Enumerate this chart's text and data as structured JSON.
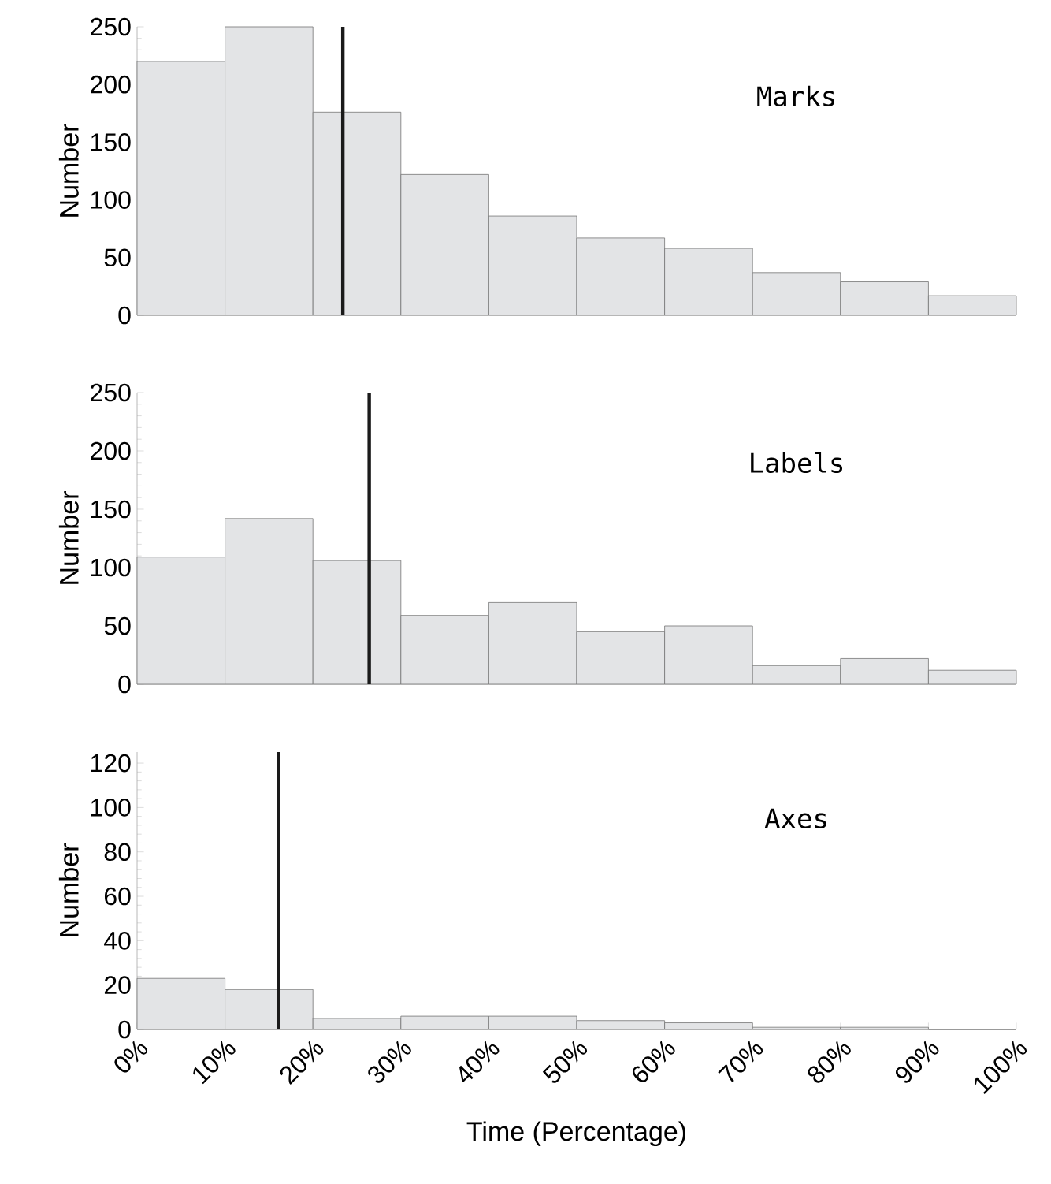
{
  "chart_data": [
    {
      "type": "histogram",
      "bins": [
        0,
        10,
        20,
        30,
        40,
        50,
        60,
        70,
        80,
        90,
        100
      ],
      "values": [
        220,
        250,
        176,
        122,
        86,
        67,
        58,
        37,
        29,
        17
      ],
      "color": "#e3e4e6",
      "xlim": [
        0,
        100
      ],
      "ylim": [
        0,
        250
      ],
      "yticks": [
        0,
        50,
        100,
        150,
        200,
        250
      ],
      "ylabel": "Number",
      "tick_labels": "y",
      "annotations": [
        "Marks"
      ],
      "ref_lines": [
        {
          "axis": "x",
          "value": 23.4,
          "color": "#1a1a1a"
        }
      ]
    },
    {
      "type": "histogram",
      "bins": [
        0,
        10,
        20,
        30,
        40,
        50,
        60,
        70,
        80,
        90,
        100
      ],
      "values": [
        109,
        142,
        106,
        59,
        70,
        45,
        50,
        16,
        22,
        12
      ],
      "color": "#e3e4e6",
      "xlim": [
        0,
        100
      ],
      "ylim": [
        0,
        250
      ],
      "yticks": [
        0,
        50,
        100,
        150,
        200,
        250
      ],
      "ylabel": "Number",
      "tick_labels": "y",
      "annotations": [
        "Labels"
      ],
      "ref_lines": [
        {
          "axis": "x",
          "value": 26.4,
          "color": "#1a1a1a"
        }
      ]
    },
    {
      "type": "histogram",
      "bins": [
        0,
        10,
        20,
        30,
        40,
        50,
        60,
        70,
        80,
        90,
        100
      ],
      "values": [
        23,
        18,
        5,
        6,
        6,
        4,
        3,
        1,
        1,
        0
      ],
      "color": "#e3e4e6",
      "xlim": [
        0,
        100
      ],
      "ylim": [
        0,
        125
      ],
      "yticks": [
        0,
        20,
        40,
        60,
        80,
        100,
        120
      ],
      "xticks": [
        {
          "value": 0,
          "label": "0%"
        },
        {
          "value": 10,
          "label": "10%"
        },
        {
          "value": 20,
          "label": "20%"
        },
        {
          "value": 30,
          "label": "30%"
        },
        {
          "value": 40,
          "label": "40%"
        },
        {
          "value": 50,
          "label": "50%"
        },
        {
          "value": 60,
          "label": "60%"
        },
        {
          "value": 70,
          "label": "70%"
        },
        {
          "value": 80,
          "label": "80%"
        },
        {
          "value": 90,
          "label": "90%"
        },
        {
          "value": 100,
          "label": "100%"
        }
      ],
      "xlabel": "Time (Percentage)",
      "ylabel": "Number",
      "annotations": [
        "Axes"
      ],
      "ref_lines": [
        {
          "axis": "x",
          "value": 16.1,
          "color": "#1a1a1a"
        }
      ]
    }
  ]
}
